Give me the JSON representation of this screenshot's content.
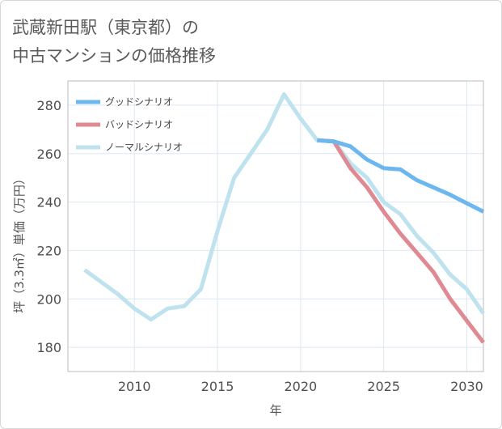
{
  "title_lines": [
    "武蔵新田駅（東京都）の",
    "中古マンションの価格推移"
  ],
  "colors": {
    "good": "#6cb8ee",
    "bad": "#df8a92",
    "normal": "#bfe2ef",
    "grid": "#dce8f0",
    "frame": "#bbbbbb"
  },
  "chart_data": {
    "type": "line",
    "title": "武蔵新田駅（東京都）の中古マンションの価格推移",
    "xlabel": "年",
    "ylabel": "坪（3.3㎡）単価（万円）",
    "xlim": [
      2006,
      2031
    ],
    "ylim": [
      170,
      290
    ],
    "x_ticks": [
      2010,
      2015,
      2020,
      2025,
      2030
    ],
    "y_ticks": [
      180,
      200,
      220,
      240,
      260,
      280
    ],
    "grid": true,
    "legend_position": "top-left",
    "series": [
      {
        "key": "good",
        "name": "グッドシナリオ",
        "x": [
          2021,
          2022,
          2023,
          2024,
          2025,
          2026,
          2027,
          2028,
          2029,
          2030,
          2031
        ],
        "y": [
          265.5,
          265.0,
          263.0,
          257.5,
          254.0,
          253.5,
          249.0,
          246.0,
          243.0,
          239.5,
          236.0
        ]
      },
      {
        "key": "bad",
        "name": "バッドシナリオ",
        "x": [
          2021,
          2022,
          2023,
          2024,
          2025,
          2026,
          2027,
          2028,
          2029,
          2030,
          2031
        ],
        "y": [
          265.5,
          265.0,
          254.0,
          246.0,
          236.0,
          227.0,
          219.0,
          211.0,
          200.0,
          191.0,
          182.0
        ]
      },
      {
        "key": "normal",
        "name": "ノーマルシナリオ",
        "x": [
          2007,
          2008,
          2009,
          2010,
          2011,
          2012,
          2013,
          2014,
          2015,
          2016,
          2017,
          2018,
          2019,
          2020,
          2021,
          2022,
          2023,
          2024,
          2025,
          2026,
          2027,
          2028,
          2029,
          2030,
          2031
        ],
        "y": [
          212.0,
          207.0,
          202.0,
          196.0,
          191.5,
          196.0,
          197.0,
          204.0,
          228.0,
          250.0,
          260.0,
          270.0,
          284.5,
          274.5,
          265.5,
          265.0,
          256.0,
          250.0,
          240.0,
          235.0,
          226.0,
          219.0,
          210.0,
          204.0,
          194.0
        ]
      }
    ]
  }
}
